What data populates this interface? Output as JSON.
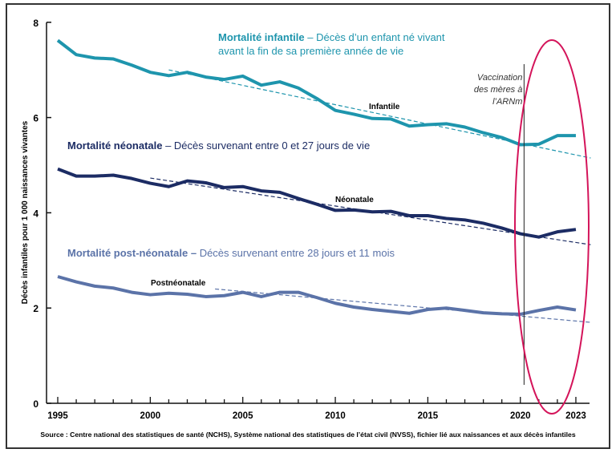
{
  "chart_data": {
    "type": "line",
    "ylabel": "Décès infantiles pour 1 000 naissances vivantes",
    "ylim": [
      0,
      8
    ],
    "yticks": [
      "0",
      "2",
      "4",
      "6",
      "8"
    ],
    "xlim": [
      1995,
      2023
    ],
    "xticks": [
      "1995",
      "2000",
      "2005",
      "2010",
      "2015",
      "2020",
      "2023"
    ],
    "x": [
      1995,
      1996,
      1997,
      1998,
      1999,
      2000,
      2001,
      2002,
      2003,
      2004,
      2005,
      2006,
      2007,
      2008,
      2009,
      2010,
      2011,
      2012,
      2013,
      2014,
      2015,
      2016,
      2017,
      2018,
      2019,
      2020,
      2021,
      2022,
      2023
    ],
    "series": [
      {
        "name": "Infantile",
        "color": "#1e95ad",
        "values": [
          7.62,
          7.32,
          7.25,
          7.23,
          7.1,
          6.95,
          6.88,
          6.95,
          6.85,
          6.8,
          6.87,
          6.68,
          6.75,
          6.62,
          6.4,
          6.15,
          6.07,
          5.98,
          5.97,
          5.82,
          5.85,
          5.87,
          5.8,
          5.68,
          5.58,
          5.43,
          5.44,
          5.62,
          5.62
        ],
        "trend": [
          [
            2001,
            7.0
          ],
          [
            2023.8,
            5.15
          ]
        ]
      },
      {
        "name": "Néonatale",
        "color": "#1c2c64",
        "values": [
          4.92,
          4.77,
          4.77,
          4.79,
          4.72,
          4.62,
          4.55,
          4.67,
          4.63,
          4.53,
          4.55,
          4.46,
          4.43,
          4.3,
          4.18,
          4.05,
          4.06,
          4.02,
          4.03,
          3.94,
          3.94,
          3.88,
          3.85,
          3.78,
          3.68,
          3.56,
          3.49,
          3.6,
          3.65
        ],
        "trend": [
          [
            2000,
            4.73
          ],
          [
            2023.8,
            3.33
          ]
        ]
      },
      {
        "name": "Postnéonatale",
        "color": "#5b73a8",
        "values": [
          2.66,
          2.55,
          2.46,
          2.42,
          2.33,
          2.28,
          2.31,
          2.29,
          2.24,
          2.26,
          2.33,
          2.24,
          2.33,
          2.33,
          2.22,
          2.1,
          2.02,
          1.97,
          1.93,
          1.89,
          1.97,
          2.0,
          1.95,
          1.9,
          1.88,
          1.87,
          1.95,
          2.02,
          1.96
        ],
        "trend": [
          [
            2003.5,
            2.4
          ],
          [
            2023.8,
            1.7
          ]
        ]
      }
    ],
    "annotations": {
      "infant_title": "Mortalité infantile",
      "infant_desc1": " – Décès d’un enfant né vivant",
      "infant_desc2": "avant la fin de sa première année de vie",
      "neo_title": "Mortalité néonatale",
      "neo_desc": " – Décès survenant entre 0 et 27 jours de vie",
      "post_title": "Mortalité post-néonatale –",
      "post_desc": " Décès survenant entre 28 jours et 11 mois",
      "vacc": [
        "Vaccination",
        "des mères à",
        "l’ARNm"
      ],
      "vacc_year": 2020.2,
      "highlight_color": "#d4145a"
    },
    "source": "Source : Centre national des statistiques de santé (NCHS), Système national des statistiques de l’état civil (NVSS), fichier lié aux naissances et aux décès infantiles"
  }
}
